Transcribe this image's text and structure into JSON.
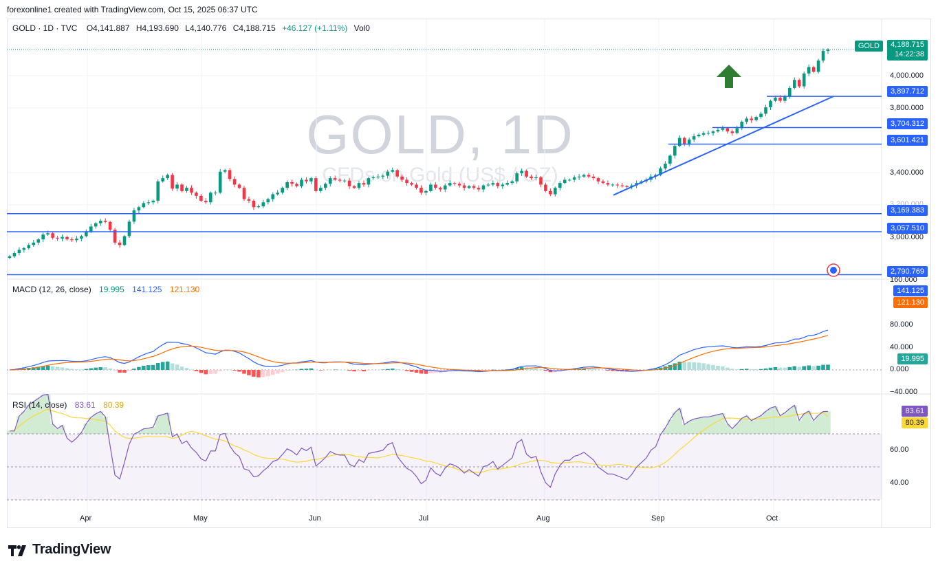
{
  "header": {
    "created_by": "forexonline1 created with TradingView.com, Oct 15, 2025 06:37 UTC",
    "symbol": "GOLD · 1D · TVC",
    "open": "O4,141.887",
    "high": "H4,193.690",
    "low": "L4,140.776",
    "close": "C4,188.715",
    "change": "+46.127 (+1.11%)",
    "volume": "Vol0"
  },
  "watermark": {
    "title": "GOLD, 1D",
    "subtitle": "CFDs on Gold (US$ / OZ)"
  },
  "brand": "TradingView",
  "price_axis": {
    "ticks": [
      "4,000.000",
      "3,800.000",
      "3,400.000",
      "3,200.000",
      "3,000.000"
    ],
    "last_symbol": "GOLD",
    "last_price": "4,188.715",
    "countdown": "14:22:38",
    "levels": [
      {
        "value": 3897.712,
        "label": "3,897.712"
      },
      {
        "value": 3704.312,
        "label": "3,704.312"
      },
      {
        "value": 3601.421,
        "label": "3,601.421"
      },
      {
        "value": 3169.383,
        "label": "3,169.383"
      },
      {
        "value": 3057.51,
        "label": "3,057.510"
      },
      {
        "value": 2790.769,
        "label": "2,790.769"
      }
    ]
  },
  "macd": {
    "label": "MACD (12, 26, close)",
    "hist": "19.995",
    "macd": "141.125",
    "signal": "121.130",
    "ticks": [
      "160.000",
      "80.000",
      "40.000",
      "0.000",
      "−40.000"
    ]
  },
  "rsi": {
    "label": "RSI (14, close)",
    "value": "83.61",
    "ma": "80.39",
    "ticks": [
      "60.00",
      "40.00"
    ]
  },
  "time_axis": [
    "Apr",
    "May",
    "Jun",
    "Jul",
    "Aug",
    "Sep",
    "Oct"
  ],
  "colors": {
    "up": "#089981",
    "down": "#f23645",
    "macd": "#2962ff",
    "signal": "#ff6d00",
    "rsi": "#7e57c2",
    "rsi_ma": "#fdd835",
    "level": "#2962ff",
    "arrow": "#2e7d32"
  },
  "chart_data": {
    "type": "candlestick",
    "title": "GOLD, 1D",
    "subtitle": "CFDs on Gold (US$ / OZ)",
    "ylim": [
      2780,
      4240
    ],
    "months": [
      "Apr",
      "May",
      "Jun",
      "Jul",
      "Aug",
      "Sep",
      "Oct"
    ],
    "closes": [
      2905,
      2925,
      2945,
      2955,
      2975,
      2990,
      3010,
      3040,
      3048,
      3020,
      3015,
      3025,
      3010,
      3005,
      3015,
      3030,
      3060,
      3090,
      3110,
      3125,
      3118,
      3070,
      2990,
      2975,
      3030,
      3120,
      3190,
      3210,
      3235,
      3240,
      3250,
      3370,
      3390,
      3410,
      3325,
      3350,
      3310,
      3330,
      3300,
      3280,
      3250,
      3240,
      3300,
      3300,
      3430,
      3440,
      3385,
      3350,
      3330,
      3260,
      3250,
      3210,
      3215,
      3240,
      3260,
      3290,
      3300,
      3330,
      3365,
      3355,
      3340,
      3380,
      3370,
      3390,
      3310,
      3330,
      3355,
      3390,
      3380,
      3375,
      3375,
      3340,
      3330,
      3360,
      3350,
      3390,
      3395,
      3400,
      3405,
      3430,
      3440,
      3400,
      3380,
      3360,
      3350,
      3330,
      3300,
      3310,
      3350,
      3330,
      3320,
      3345,
      3360,
      3355,
      3345,
      3330,
      3340,
      3330,
      3320,
      3345,
      3350,
      3360,
      3340,
      3350,
      3360,
      3370,
      3420,
      3435,
      3400,
      3390,
      3395,
      3350,
      3310,
      3290,
      3330,
      3360,
      3380,
      3380,
      3395,
      3400,
      3410,
      3400,
      3390,
      3370,
      3360,
      3350,
      3350,
      3345,
      3340,
      3335,
      3345,
      3360,
      3370,
      3380,
      3400,
      3410,
      3450,
      3480,
      3530,
      3590,
      3640,
      3600,
      3630,
      3650,
      3660,
      3670,
      3670,
      3680,
      3690,
      3700,
      3680,
      3670,
      3700,
      3740,
      3760,
      3750,
      3770,
      3790,
      3830,
      3870,
      3890,
      3870,
      3900,
      3950,
      4000,
      3960,
      4040,
      4080,
      4050,
      4120,
      4180,
      4188.715
    ],
    "macd_series": {
      "macd_last": 141.125,
      "signal_last": 121.13,
      "hist_last": 19.995
    },
    "rsi_last": 83.61,
    "rsi_ma_last": 80.39
  }
}
